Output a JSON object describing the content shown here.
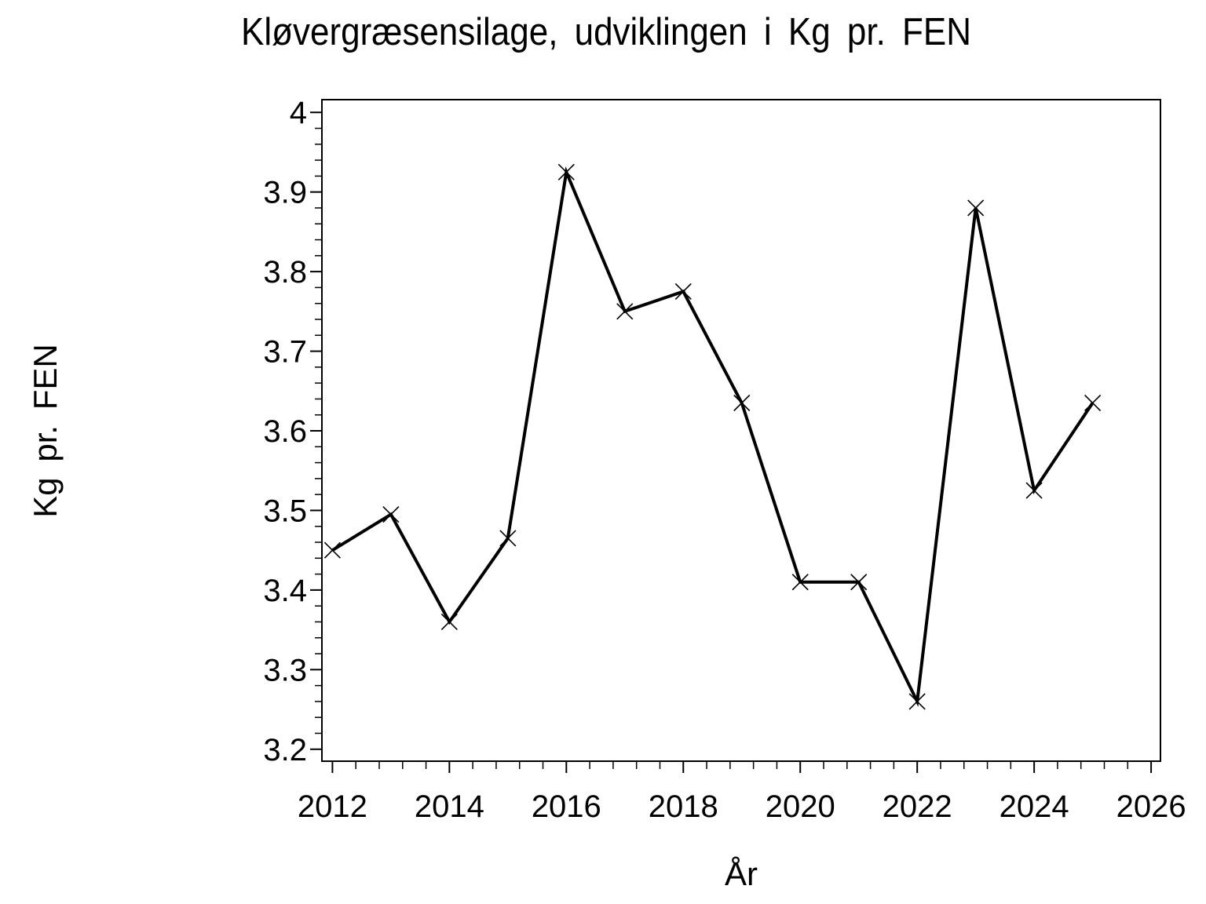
{
  "page": {
    "background": "#ffffff",
    "foreground": "#000000"
  },
  "chart_data": {
    "type": "line",
    "title": "Kløvergræsensilage, udviklingen i Kg pr. FEN",
    "xlabel": "År",
    "ylabel": "Kg pr. FEN",
    "x": [
      2012,
      2013,
      2014,
      2015,
      2016,
      2017,
      2018,
      2019,
      2020,
      2021,
      2022,
      2023,
      2024,
      2025
    ],
    "values": [
      3.45,
      3.495,
      3.36,
      3.465,
      3.925,
      3.75,
      3.775,
      3.635,
      3.41,
      3.41,
      3.26,
      3.88,
      3.525,
      3.635
    ],
    "series_name": "Kg pr. FEN",
    "marker": "x",
    "line_color": "#000000",
    "line_width": 4,
    "x_major_ticks": [
      2012,
      2014,
      2016,
      2018,
      2020,
      2022,
      2024,
      2026
    ],
    "x_tick_labels": [
      "2012",
      "2014",
      "2016",
      "2018",
      "2020",
      "2022",
      "2024",
      "2026"
    ],
    "x_minor_step": 0.4,
    "y_major_ticks": [
      3.2,
      3.3,
      3.4,
      3.5,
      3.6,
      3.7,
      3.8,
      3.9,
      4.0
    ],
    "y_tick_labels": [
      "3.2",
      "3.3",
      "3.4",
      "3.5",
      "3.6",
      "3.7",
      "3.8",
      "3.9",
      "4"
    ],
    "y_minor_step": 0.02,
    "xlim": [
      2011.82,
      2026.16
    ],
    "ylim": [
      3.185,
      4.016
    ],
    "grid": false,
    "legend": null
  }
}
